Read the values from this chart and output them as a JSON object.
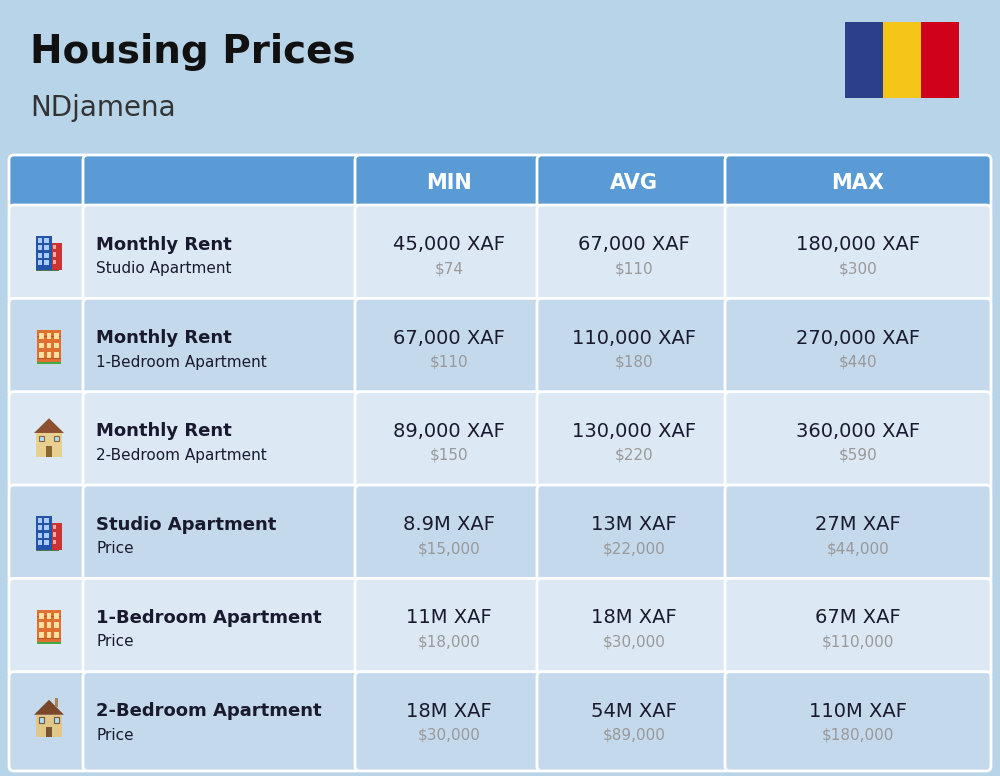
{
  "title": "Housing Prices",
  "subtitle": "NDjamena",
  "background_color": "#b8d4e8",
  "header_bg_color": "#5b9bd5",
  "header_text_color": "#ffffff",
  "row_bg_light": "#dce9f5",
  "row_bg_dark": "#c5d9ed",
  "cell_text_color": "#1a1a2e",
  "usd_text_color": "#999999",
  "col_headers": [
    "MIN",
    "AVG",
    "MAX"
  ],
  "rows": [
    {
      "bold_label": "Monthly Rent",
      "sub_label": "Studio Apartment",
      "min_xaf": "45,000 XAF",
      "min_usd": "$74",
      "avg_xaf": "67,000 XAF",
      "avg_usd": "$110",
      "max_xaf": "180,000 XAF",
      "max_usd": "$300",
      "icon_type": "blue_office"
    },
    {
      "bold_label": "Monthly Rent",
      "sub_label": "1-Bedroom Apartment",
      "min_xaf": "67,000 XAF",
      "min_usd": "$110",
      "avg_xaf": "110,000 XAF",
      "avg_usd": "$180",
      "max_xaf": "270,000 XAF",
      "max_usd": "$440",
      "icon_type": "orange_apartment"
    },
    {
      "bold_label": "Monthly Rent",
      "sub_label": "2-Bedroom Apartment",
      "min_xaf": "89,000 XAF",
      "min_usd": "$150",
      "avg_xaf": "130,000 XAF",
      "avg_usd": "$220",
      "max_xaf": "360,000 XAF",
      "max_usd": "$590",
      "icon_type": "beige_house"
    },
    {
      "bold_label": "Studio Apartment",
      "sub_label": "Price",
      "min_xaf": "8.9M XAF",
      "min_usd": "$15,000",
      "avg_xaf": "13M XAF",
      "avg_usd": "$22,000",
      "max_xaf": "27M XAF",
      "max_usd": "$44,000",
      "icon_type": "blue_office"
    },
    {
      "bold_label": "1-Bedroom Apartment",
      "sub_label": "Price",
      "min_xaf": "11M XAF",
      "min_usd": "$18,000",
      "avg_xaf": "18M XAF",
      "avg_usd": "$30,000",
      "max_xaf": "67M XAF",
      "max_usd": "$110,000",
      "icon_type": "orange_apartment"
    },
    {
      "bold_label": "2-Bedroom Apartment",
      "sub_label": "Price",
      "min_xaf": "18M XAF",
      "min_usd": "$30,000",
      "avg_xaf": "54M XAF",
      "avg_usd": "$89,000",
      "max_xaf": "110M XAF",
      "max_usd": "$180,000",
      "icon_type": "beige_house2"
    }
  ],
  "flag_colors": [
    "#2b3f8b",
    "#f5c518",
    "#d0021b"
  ],
  "title_fontsize": 28,
  "subtitle_fontsize": 20,
  "header_fontsize": 15,
  "cell_main_fontsize": 14,
  "cell_usd_fontsize": 11,
  "label_bold_fontsize": 13,
  "label_sub_fontsize": 11
}
